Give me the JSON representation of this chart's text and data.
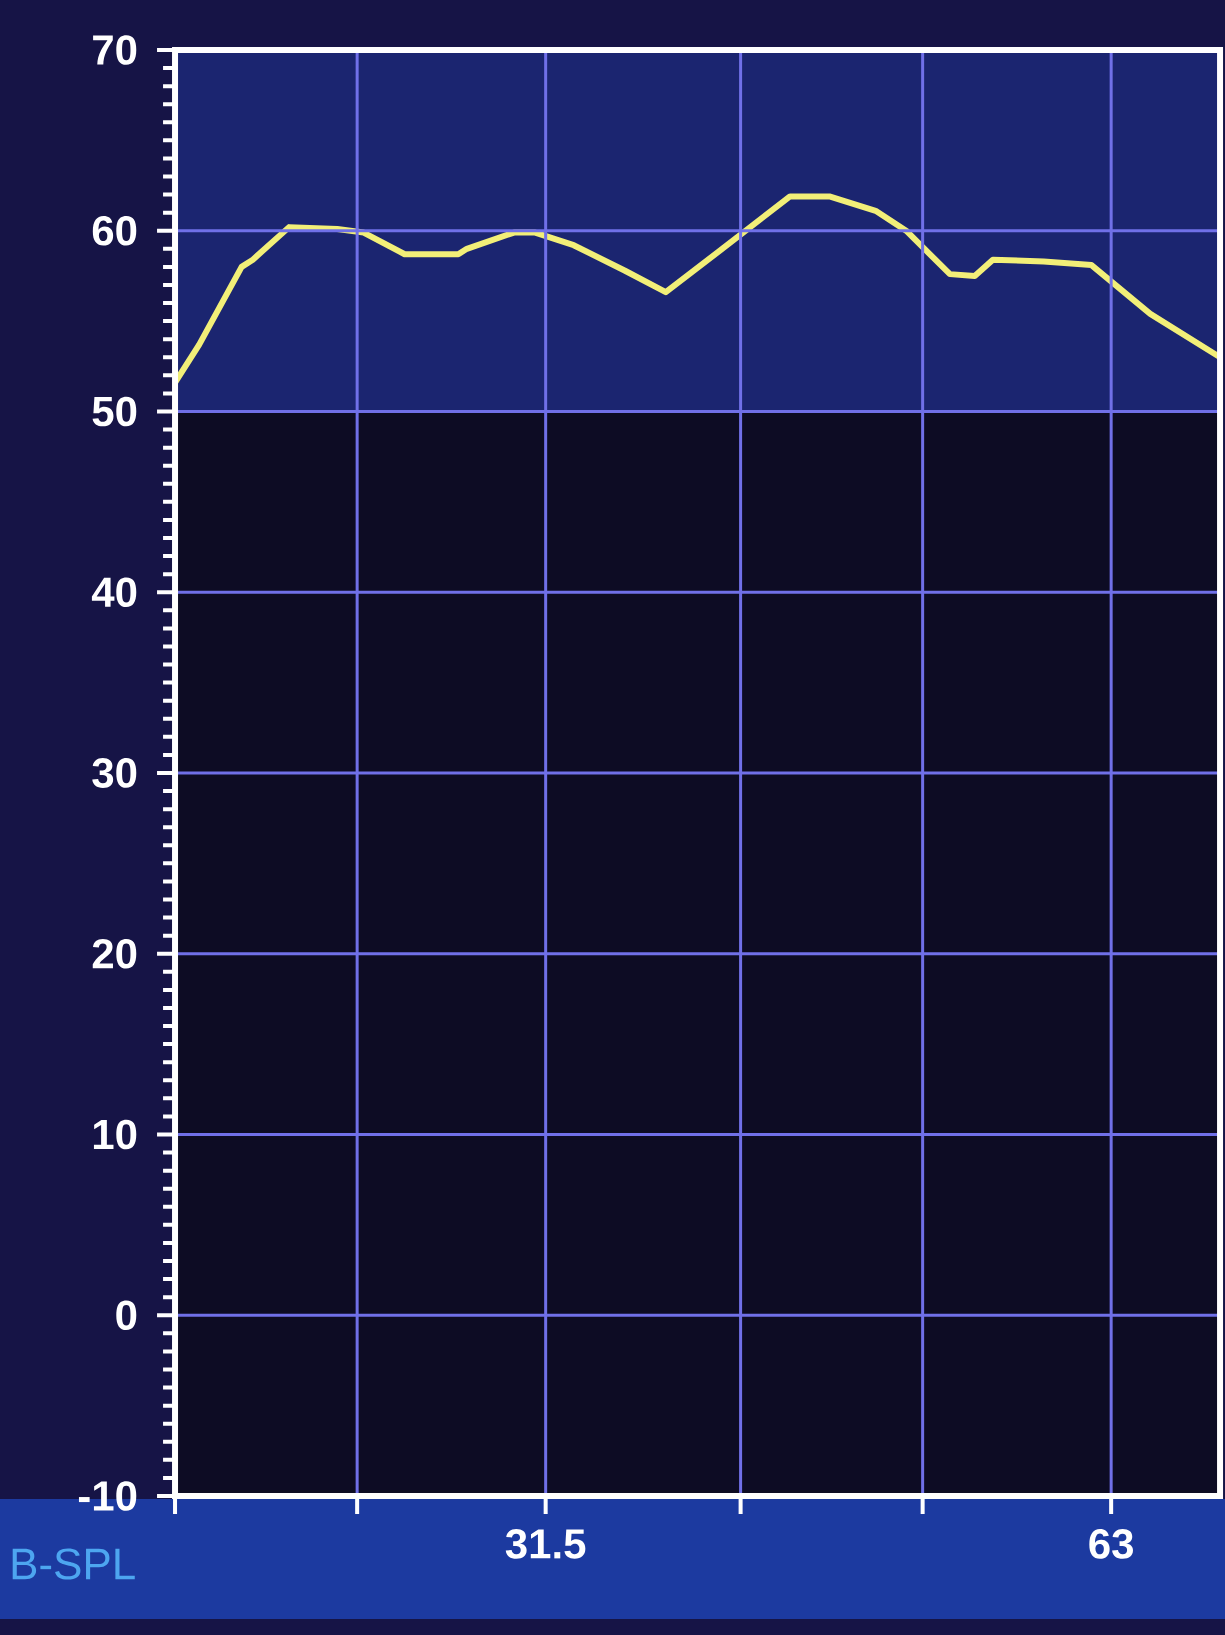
{
  "chart_data": {
    "type": "line",
    "xlabel": "B-SPL",
    "x": [
      20,
      20.6,
      21.7,
      22.0,
      23.0,
      24.4,
      25.2,
      26.5,
      28.3,
      28.6,
      30.3,
      31.1,
      32.6,
      34.7,
      36.5,
      39.0,
      42.5,
      44.6,
      47.2,
      49.0,
      51.7,
      53.3,
      54.5,
      58.0,
      61.5,
      66.1,
      72
    ],
    "series": [
      {
        "color": "#f2ef78",
        "values": [
          51.6,
          53.7,
          58.0,
          58.4,
          60.2,
          60.1,
          59.9,
          58.7,
          58.7,
          59.0,
          59.9,
          59.9,
          59.2,
          57.8,
          56.6,
          58.9,
          61.9,
          61.9,
          61.1,
          60.0,
          57.6,
          57.5,
          58.4,
          58.3,
          58.1,
          55.4,
          53.0
        ]
      }
    ],
    "xlim": [
      20,
      72
    ],
    "ylim": [
      -10,
      70
    ],
    "xticks": [
      {
        "value": 20,
        "label": null
      },
      {
        "value": 25,
        "label": null
      },
      31.5,
      {
        "value": 40,
        "label": null
      },
      {
        "value": 50,
        "label": null
      },
      63
    ],
    "yticks": [
      -10,
      0,
      10,
      20,
      30,
      40,
      50,
      60,
      70
    ],
    "log": "x",
    "grid": true,
    "bands": [
      {
        "axis": "y",
        "from": 50,
        "to": 70,
        "color": "#1b2570"
      }
    ]
  }
}
